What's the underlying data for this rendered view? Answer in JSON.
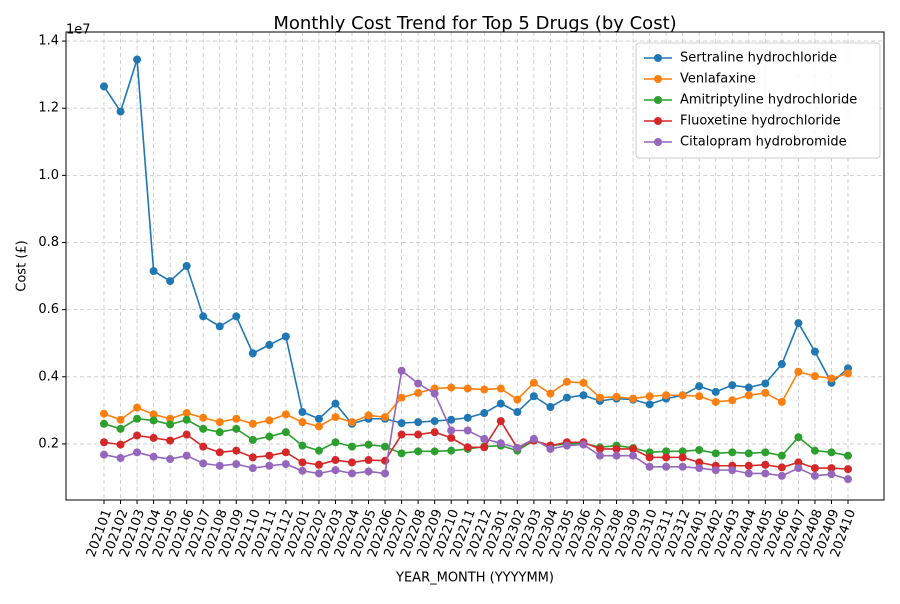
{
  "chart_data": {
    "type": "line",
    "title": "Monthly Cost Trend for Top 5 Drugs (by Cost)",
    "x_label": "YEAR_MONTH (YYYYMM)",
    "y_label": "Cost (£)",
    "y_offset_label": "1e7",
    "categories": [
      "202101",
      "202102",
      "202103",
      "202104",
      "202105",
      "202106",
      "202107",
      "202108",
      "202109",
      "202110",
      "202111",
      "202112",
      "202201",
      "202202",
      "202203",
      "202204",
      "202205",
      "202206",
      "202207",
      "202208",
      "202209",
      "202210",
      "202211",
      "202212",
      "202301",
      "202302",
      "202303",
      "202304",
      "202305",
      "202306",
      "202307",
      "202308",
      "202309",
      "202310",
      "202311",
      "202312",
      "202401",
      "202402",
      "202403",
      "202404",
      "202405",
      "202406",
      "202407",
      "202408",
      "202409",
      "202410"
    ],
    "series": [
      {
        "name": "Sertraline hydrochloride",
        "color": "#1f77b4",
        "values": [
          1.265,
          1.19,
          1.345,
          0.715,
          0.685,
          0.73,
          0.58,
          0.55,
          0.58,
          0.47,
          0.495,
          0.52,
          0.295,
          0.275,
          0.32,
          0.26,
          0.275,
          0.275,
          0.262,
          0.265,
          0.268,
          0.272,
          0.278,
          0.292,
          0.32,
          0.295,
          0.342,
          0.31,
          0.338,
          0.345,
          0.328,
          0.335,
          0.332,
          0.318,
          0.335,
          0.345,
          0.372,
          0.355,
          0.375,
          0.368,
          0.38,
          0.438,
          0.56,
          0.475,
          0.382,
          0.425
        ]
      },
      {
        "name": "Venlafaxine",
        "color": "#ff7f0e",
        "values": [
          0.29,
          0.272,
          0.308,
          0.288,
          0.275,
          0.292,
          0.278,
          0.265,
          0.275,
          0.26,
          0.27,
          0.288,
          0.265,
          0.252,
          0.28,
          0.265,
          0.285,
          0.28,
          0.338,
          0.352,
          0.365,
          0.368,
          0.365,
          0.362,
          0.365,
          0.332,
          0.382,
          0.35,
          0.385,
          0.382,
          0.338,
          0.34,
          0.335,
          0.342,
          0.345,
          0.345,
          0.342,
          0.325,
          0.33,
          0.345,
          0.352,
          0.325,
          0.415,
          0.402,
          0.395,
          0.41
        ]
      },
      {
        "name": "Amitriptyline hydrochloride",
        "color": "#2ca02c",
        "values": [
          0.26,
          0.245,
          0.275,
          0.27,
          0.258,
          0.272,
          0.245,
          0.235,
          0.245,
          0.212,
          0.222,
          0.235,
          0.195,
          0.18,
          0.205,
          0.192,
          0.198,
          0.192,
          0.172,
          0.178,
          0.178,
          0.18,
          0.185,
          0.192,
          0.195,
          0.18,
          0.21,
          0.195,
          0.2,
          0.202,
          0.19,
          0.195,
          0.188,
          0.175,
          0.178,
          0.178,
          0.182,
          0.172,
          0.175,
          0.172,
          0.175,
          0.165,
          0.22,
          0.18,
          0.175,
          0.165
        ]
      },
      {
        "name": "Fluoxetine hydrochloride",
        "color": "#d62728",
        "values": [
          0.205,
          0.198,
          0.225,
          0.218,
          0.21,
          0.228,
          0.192,
          0.175,
          0.18,
          0.16,
          0.165,
          0.175,
          0.145,
          0.138,
          0.152,
          0.145,
          0.152,
          0.15,
          0.228,
          0.228,
          0.235,
          0.218,
          0.19,
          0.19,
          0.268,
          0.188,
          0.21,
          0.195,
          0.205,
          0.205,
          0.185,
          0.185,
          0.185,
          0.16,
          0.16,
          0.16,
          0.145,
          0.135,
          0.135,
          0.135,
          0.138,
          0.13,
          0.145,
          0.128,
          0.128,
          0.125
        ]
      },
      {
        "name": "Citalopram hydrobromide",
        "color": "#9467bd",
        "values": [
          0.168,
          0.158,
          0.175,
          0.162,
          0.155,
          0.165,
          0.142,
          0.135,
          0.14,
          0.128,
          0.135,
          0.14,
          0.12,
          0.112,
          0.122,
          0.112,
          0.118,
          0.112,
          0.418,
          0.38,
          0.35,
          0.24,
          0.24,
          0.215,
          0.202,
          0.188,
          0.215,
          0.185,
          0.195,
          0.198,
          0.165,
          0.165,
          0.165,
          0.132,
          0.132,
          0.132,
          0.128,
          0.122,
          0.122,
          0.112,
          0.112,
          0.105,
          0.128,
          0.105,
          0.11,
          0.095
        ]
      }
    ],
    "ylim": [
      0.033,
      1.427
    ],
    "yticks": [
      0.2,
      0.4,
      0.6,
      0.8,
      {
        "value": 1,
        "label": "1.0"
      },
      1.2,
      1.4
    ],
    "grid": true,
    "legend": "upper right"
  }
}
